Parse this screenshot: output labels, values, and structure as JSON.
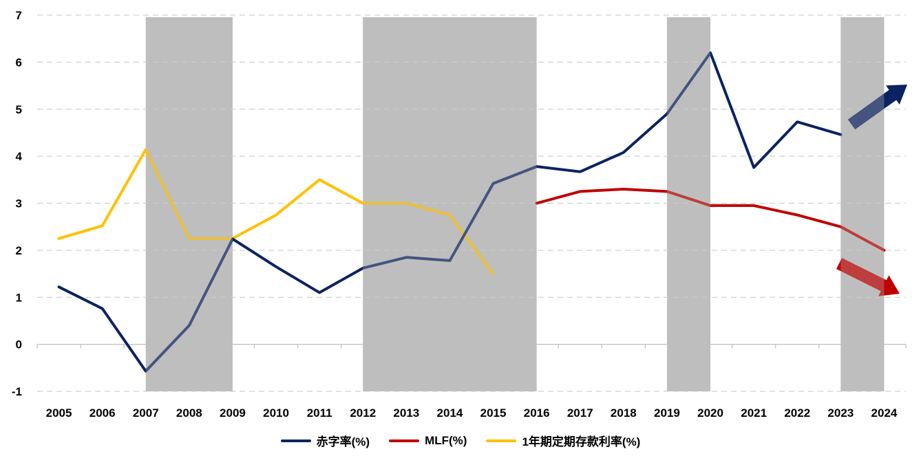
{
  "chart_data": {
    "type": "line",
    "x": [
      "2005",
      "2006",
      "2007",
      "2008",
      "2009",
      "2010",
      "2011",
      "2012",
      "2013",
      "2014",
      "2015",
      "2016",
      "2017",
      "2018",
      "2019",
      "2020",
      "2021",
      "2022",
      "2023",
      "2024"
    ],
    "ylim": [
      -1,
      7
    ],
    "yticks": [
      -1,
      0,
      1,
      2,
      3,
      4,
      5,
      6,
      7
    ],
    "grid": true,
    "legend_position": "bottom",
    "series": [
      {
        "name": "赤字率(%)",
        "color": "#0b2360",
        "values": [
          1.22,
          0.76,
          -0.57,
          0.4,
          2.24,
          1.65,
          1.1,
          1.62,
          1.85,
          1.78,
          3.42,
          3.78,
          3.67,
          4.08,
          4.9,
          6.2,
          3.76,
          4.73,
          4.46,
          null
        ]
      },
      {
        "name": "MLF(%)",
        "color": "#c00000",
        "values": [
          null,
          null,
          null,
          null,
          null,
          null,
          null,
          null,
          null,
          null,
          null,
          3.0,
          3.25,
          3.3,
          3.25,
          2.95,
          2.95,
          2.75,
          2.5,
          2.0
        ]
      },
      {
        "name": "1年期定期存款利率(%)",
        "color": "#ffc000",
        "values": [
          2.25,
          2.52,
          4.14,
          2.25,
          2.25,
          2.75,
          3.5,
          3.0,
          3.0,
          2.75,
          1.5,
          null,
          null,
          null,
          null,
          null,
          null,
          null,
          null,
          null
        ]
      }
    ],
    "shaded_periods": [
      [
        "2007",
        "2009"
      ],
      [
        "2012",
        "2016"
      ],
      [
        "2019",
        "2020"
      ],
      [
        "2023",
        "2024"
      ]
    ],
    "annotations": [
      {
        "type": "arrow",
        "direction": "up",
        "series": "赤字率(%)",
        "color": "#0b2360"
      },
      {
        "type": "arrow",
        "direction": "down",
        "series": "MLF(%)",
        "color": "#c00000"
      }
    ]
  }
}
